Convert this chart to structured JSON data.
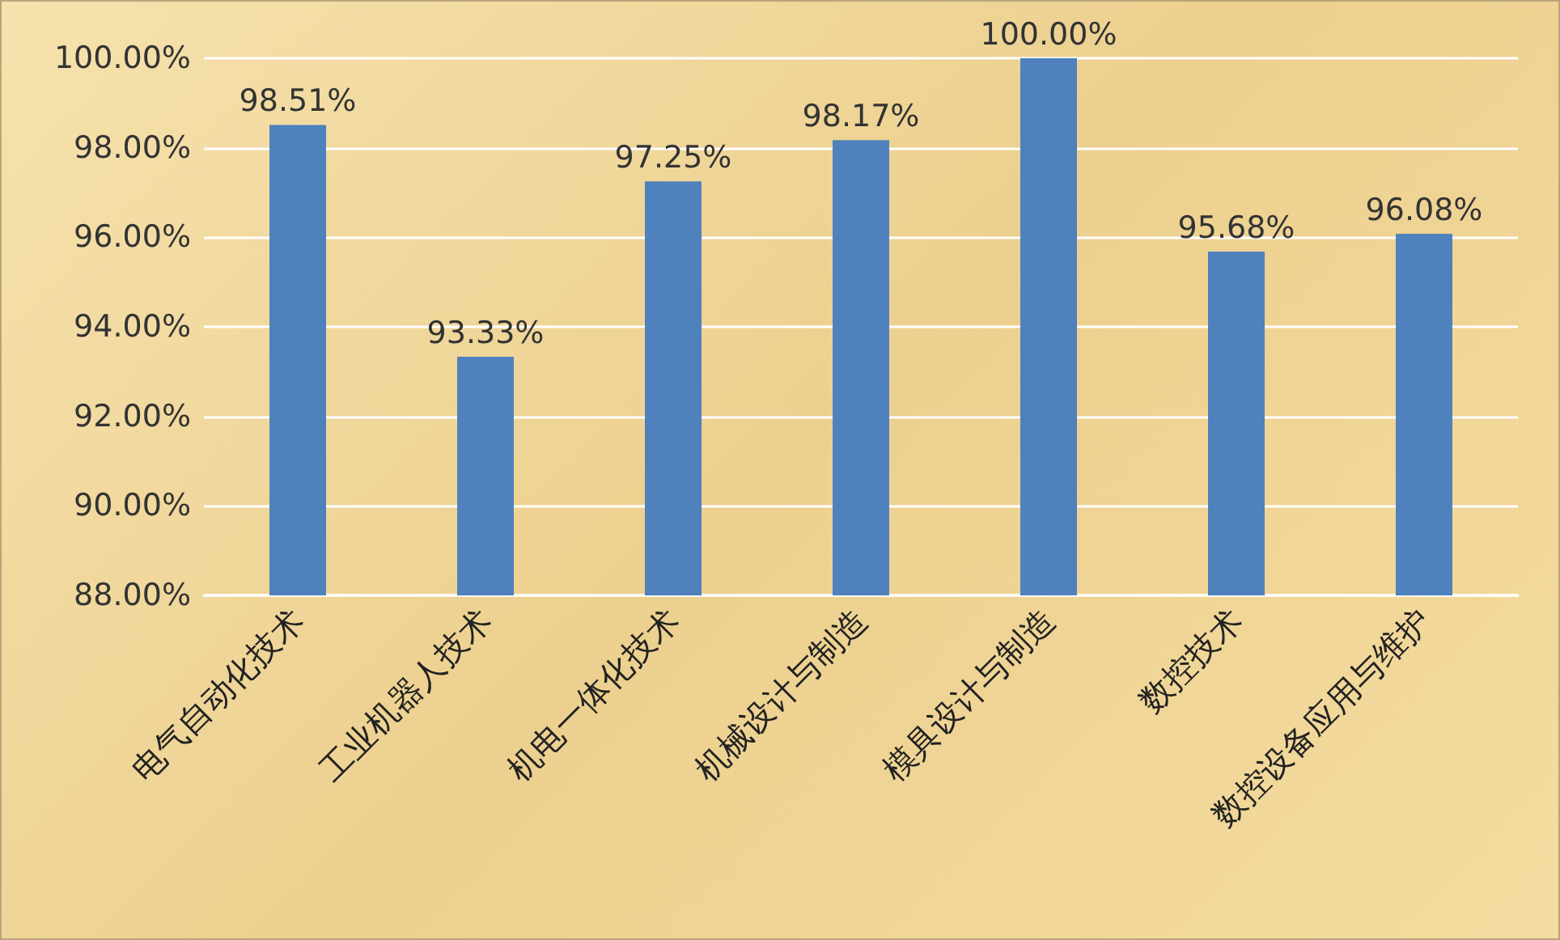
{
  "chart_data": {
    "type": "bar",
    "categories": [
      "电气自动化技术",
      "工业机器人技术",
      "机电一体化技术",
      "机械设计与制造",
      "模具设计与制造",
      "数控技术",
      "数控设备应用与维护"
    ],
    "values": [
      98.51,
      93.33,
      97.25,
      98.17,
      100.0,
      95.68,
      96.08
    ],
    "value_labels": [
      "98.51%",
      "93.33%",
      "97.25%",
      "98.17%",
      "100.00%",
      "95.68%",
      "96.08%"
    ],
    "color": "#4f81bd",
    "ylim": [
      88,
      100
    ],
    "yticks": [
      {
        "value": 88,
        "label": "88.00%"
      },
      {
        "value": 90,
        "label": "90.00%"
      },
      {
        "value": 92,
        "label": "92.00%"
      },
      {
        "value": 94,
        "label": "94.00%"
      },
      {
        "value": 96,
        "label": "96.00%"
      },
      {
        "value": 98,
        "label": "98.00%"
      },
      {
        "value": 100,
        "label": "100.00%"
      }
    ],
    "grid": "y"
  }
}
